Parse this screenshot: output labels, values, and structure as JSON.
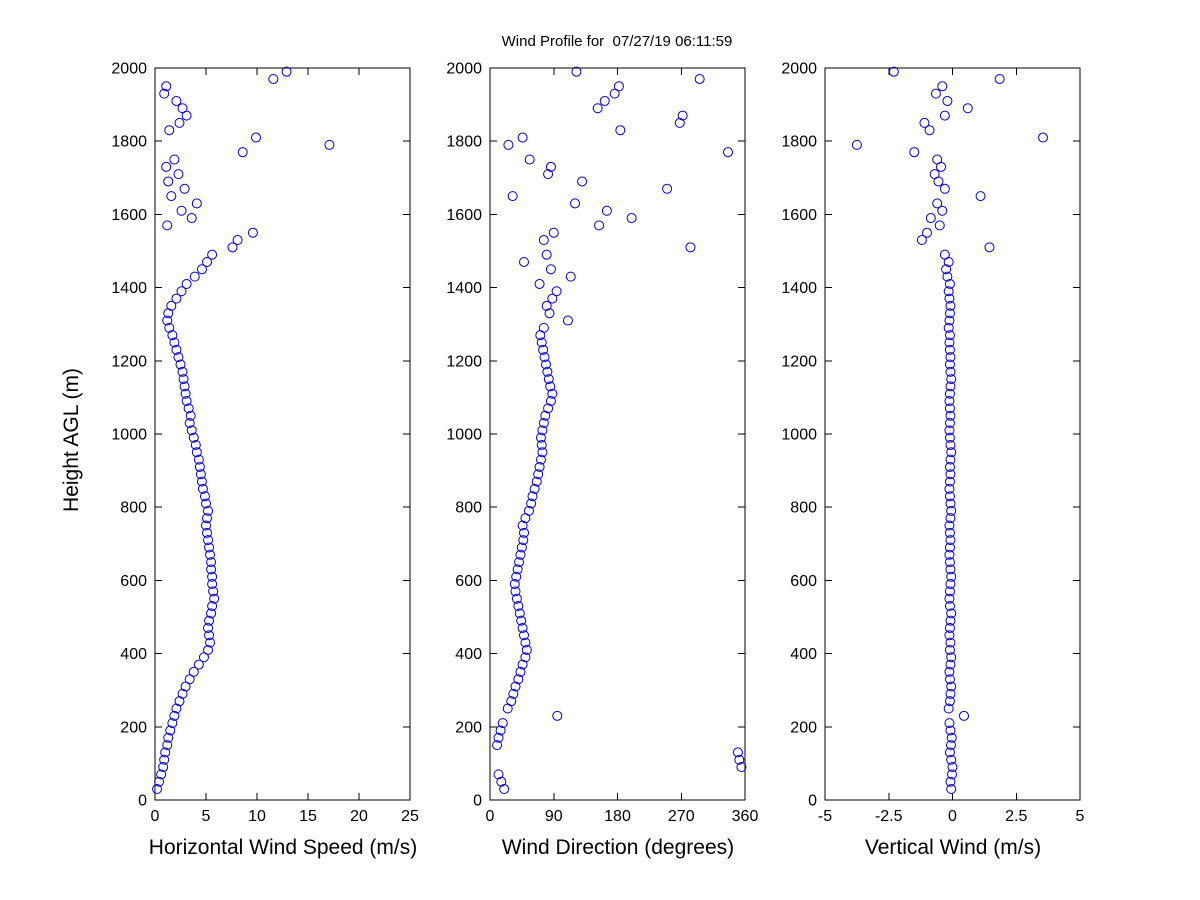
{
  "colors": {
    "marker": "#0000CC",
    "axis": "#000000",
    "background": "#FFFFFF"
  },
  "chart_data": {
    "type": "scatter",
    "title": "Wind Profile for  07/27/19 06:11:59",
    "ylabel": "Height AGL (m)",
    "ylim": [
      0,
      2000
    ],
    "yticks": [
      0,
      200,
      400,
      600,
      800,
      1000,
      1200,
      1400,
      1600,
      1800,
      2000
    ],
    "grid": false,
    "legend": "none",
    "marker": "open-circle",
    "heights_m": [
      30,
      50,
      70,
      90,
      110,
      130,
      150,
      170,
      190,
      210,
      230,
      250,
      270,
      290,
      310,
      330,
      350,
      370,
      390,
      410,
      430,
      450,
      470,
      490,
      510,
      530,
      550,
      570,
      590,
      610,
      630,
      650,
      670,
      690,
      710,
      730,
      750,
      770,
      790,
      810,
      830,
      850,
      870,
      890,
      910,
      930,
      950,
      970,
      990,
      1010,
      1030,
      1050,
      1070,
      1090,
      1110,
      1130,
      1150,
      1170,
      1190,
      1210,
      1230,
      1250,
      1270,
      1290,
      1310,
      1330,
      1350,
      1370,
      1390,
      1410,
      1430,
      1450,
      1470,
      1490,
      1510,
      1530,
      1550,
      1570,
      1590,
      1610,
      1630,
      1650,
      1670,
      1690,
      1710,
      1730,
      1750,
      1770,
      1790,
      1810,
      1830,
      1850,
      1870,
      1890,
      1910,
      1930,
      1950,
      1970,
      1990
    ],
    "subplots": [
      {
        "xlabel": "Horizontal Wind Speed (m/s)",
        "xlim": [
          0,
          25
        ],
        "xticks": [
          0,
          5,
          10,
          15,
          20,
          25
        ],
        "values": [
          0.2,
          0.4,
          0.6,
          0.8,
          0.9,
          1.0,
          1.2,
          1.3,
          1.5,
          1.7,
          1.9,
          2.1,
          2.4,
          2.7,
          3.0,
          3.4,
          3.8,
          4.3,
          4.8,
          5.2,
          5.4,
          5.3,
          5.2,
          5.3,
          5.5,
          5.6,
          5.8,
          5.7,
          5.6,
          5.6,
          5.5,
          5.5,
          5.4,
          5.3,
          5.2,
          5.1,
          5.0,
          5.1,
          5.2,
          5.0,
          4.9,
          4.7,
          4.6,
          4.5,
          4.4,
          4.3,
          4.1,
          4.0,
          3.8,
          3.6,
          3.4,
          3.5,
          3.3,
          3.1,
          3.0,
          2.9,
          2.8,
          2.7,
          2.5,
          2.3,
          2.1,
          1.9,
          1.7,
          1.4,
          1.2,
          1.3,
          1.6,
          2.1,
          2.6,
          3.1,
          3.9,
          4.6,
          5.1,
          5.6,
          7.6,
          8.1,
          9.6,
          1.2,
          3.6,
          2.6,
          4.1,
          1.6,
          2.9,
          1.3,
          2.3,
          1.1,
          1.9,
          8.6,
          17.1,
          9.9,
          1.4,
          2.4,
          3.1,
          2.7,
          2.1,
          0.9,
          1.1,
          11.6,
          12.9
        ]
      },
      {
        "xlabel": "Wind Direction (degrees)",
        "xlim": [
          0,
          360
        ],
        "xticks": [
          0,
          90,
          180,
          270,
          360
        ],
        "values": [
          20,
          16,
          12,
          355,
          352,
          350,
          10,
          12,
          15,
          18,
          95,
          25,
          30,
          33,
          36,
          40,
          43,
          46,
          50,
          52,
          50,
          48,
          46,
          44,
          42,
          40,
          38,
          36,
          35,
          37,
          39,
          41,
          43,
          45,
          47,
          48,
          46,
          50,
          55,
          58,
          60,
          63,
          66,
          68,
          70,
          72,
          74,
          73,
          72,
          74,
          76,
          78,
          82,
          86,
          88,
          85,
          83,
          81,
          79,
          77,
          75,
          73,
          71,
          76,
          110,
          84,
          80,
          88,
          94,
          70,
          114,
          86,
          48,
          80,
          283,
          76,
          90,
          154,
          200,
          165,
          120,
          32,
          250,
          130,
          82,
          86,
          56,
          336,
          26,
          46,
          184,
          268,
          272,
          152,
          162,
          176,
          182,
          296,
          122
        ]
      },
      {
        "xlabel": "Vertical Wind (m/s)",
        "xlim": [
          -5,
          5
        ],
        "xticks": [
          -5,
          -2.5,
          0,
          2.5,
          5
        ],
        "values": [
          -0.05,
          -0.08,
          -0.02,
          0.0,
          -0.05,
          -0.1,
          -0.06,
          -0.03,
          -0.08,
          -0.12,
          0.45,
          -0.15,
          -0.1,
          -0.08,
          -0.05,
          -0.1,
          -0.12,
          -0.08,
          -0.05,
          -0.1,
          -0.08,
          -0.12,
          -0.1,
          -0.08,
          -0.05,
          -0.1,
          -0.12,
          -0.1,
          -0.08,
          -0.05,
          -0.08,
          -0.1,
          -0.12,
          -0.1,
          -0.08,
          -0.1,
          -0.12,
          -0.08,
          -0.05,
          -0.08,
          -0.1,
          -0.12,
          -0.1,
          -0.08,
          -0.1,
          -0.08,
          -0.05,
          -0.08,
          -0.1,
          -0.12,
          -0.1,
          -0.08,
          -0.1,
          -0.12,
          -0.1,
          -0.08,
          -0.05,
          -0.08,
          -0.1,
          -0.08,
          -0.1,
          -0.12,
          -0.1,
          -0.15,
          -0.12,
          -0.1,
          -0.08,
          -0.12,
          -0.15,
          -0.1,
          -0.2,
          -0.25,
          -0.15,
          -0.3,
          1.45,
          -1.2,
          -1.0,
          -0.5,
          -0.85,
          -0.4,
          -0.6,
          1.1,
          -0.3,
          -0.55,
          -0.7,
          -0.45,
          -0.6,
          -1.5,
          -3.75,
          3.55,
          -0.9,
          -1.1,
          -0.3,
          0.6,
          -0.2,
          -0.65,
          -0.4,
          1.85,
          -2.3
        ]
      }
    ]
  }
}
